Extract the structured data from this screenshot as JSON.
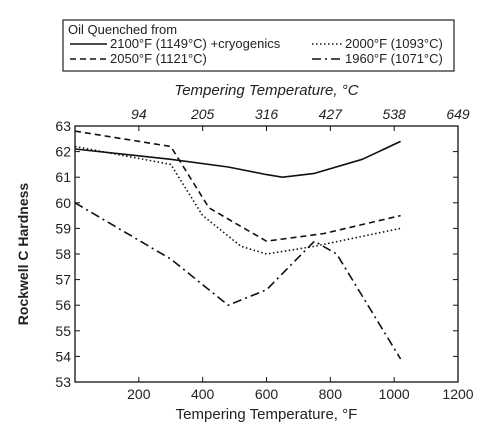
{
  "chart_data": {
    "type": "line",
    "title": "",
    "xlabel": "Tempering Temperature, °F",
    "x2label": "Tempering Temperature, °C",
    "ylabel": "Rockwell C Hardness",
    "xlim": [
      0,
      1200
    ],
    "ylim": [
      53,
      63
    ],
    "x_ticks": [
      200,
      400,
      600,
      800,
      1000,
      1200
    ],
    "x2_ticks": [
      {
        "label": "94",
        "f": 200
      },
      {
        "label": "205",
        "f": 400
      },
      {
        "label": "316",
        "f": 600
      },
      {
        "label": "427",
        "f": 800
      },
      {
        "label": "538",
        "f": 1000
      },
      {
        "label": "649",
        "f": 1200
      }
    ],
    "y_ticks": [
      53,
      54,
      55,
      56,
      57,
      58,
      59,
      60,
      61,
      62,
      63
    ],
    "grid": false,
    "legend": {
      "title": "Oil Quenched from",
      "placement": "top",
      "entries_order": [
        0,
        2,
        1,
        3
      ]
    },
    "series": [
      {
        "name": "2100°F (1149°C) +cryogenics",
        "style": "solid",
        "x": [
          0,
          300,
          480,
          600,
          650,
          750,
          900,
          1020
        ],
        "y": [
          62.1,
          61.7,
          61.4,
          61.1,
          61.0,
          61.15,
          61.7,
          62.4
        ]
      },
      {
        "name": "2050°F (1121°C)",
        "style": "dashed",
        "x": [
          0,
          300,
          420,
          600,
          780,
          1020
        ],
        "y": [
          62.8,
          62.2,
          59.8,
          58.5,
          58.8,
          59.5
        ]
      },
      {
        "name": "2000°F (1093°C)",
        "style": "dotted",
        "x": [
          0,
          300,
          400,
          520,
          600,
          750,
          1020
        ],
        "y": [
          62.2,
          61.5,
          59.5,
          58.3,
          58.0,
          58.3,
          59.0
        ]
      },
      {
        "name": "1960°F (1071°C)",
        "style": "dashdot",
        "x": [
          0,
          300,
          480,
          600,
          750,
          820,
          1020
        ],
        "y": [
          60.0,
          57.8,
          56.0,
          56.6,
          58.5,
          58.0,
          53.9
        ]
      }
    ]
  }
}
